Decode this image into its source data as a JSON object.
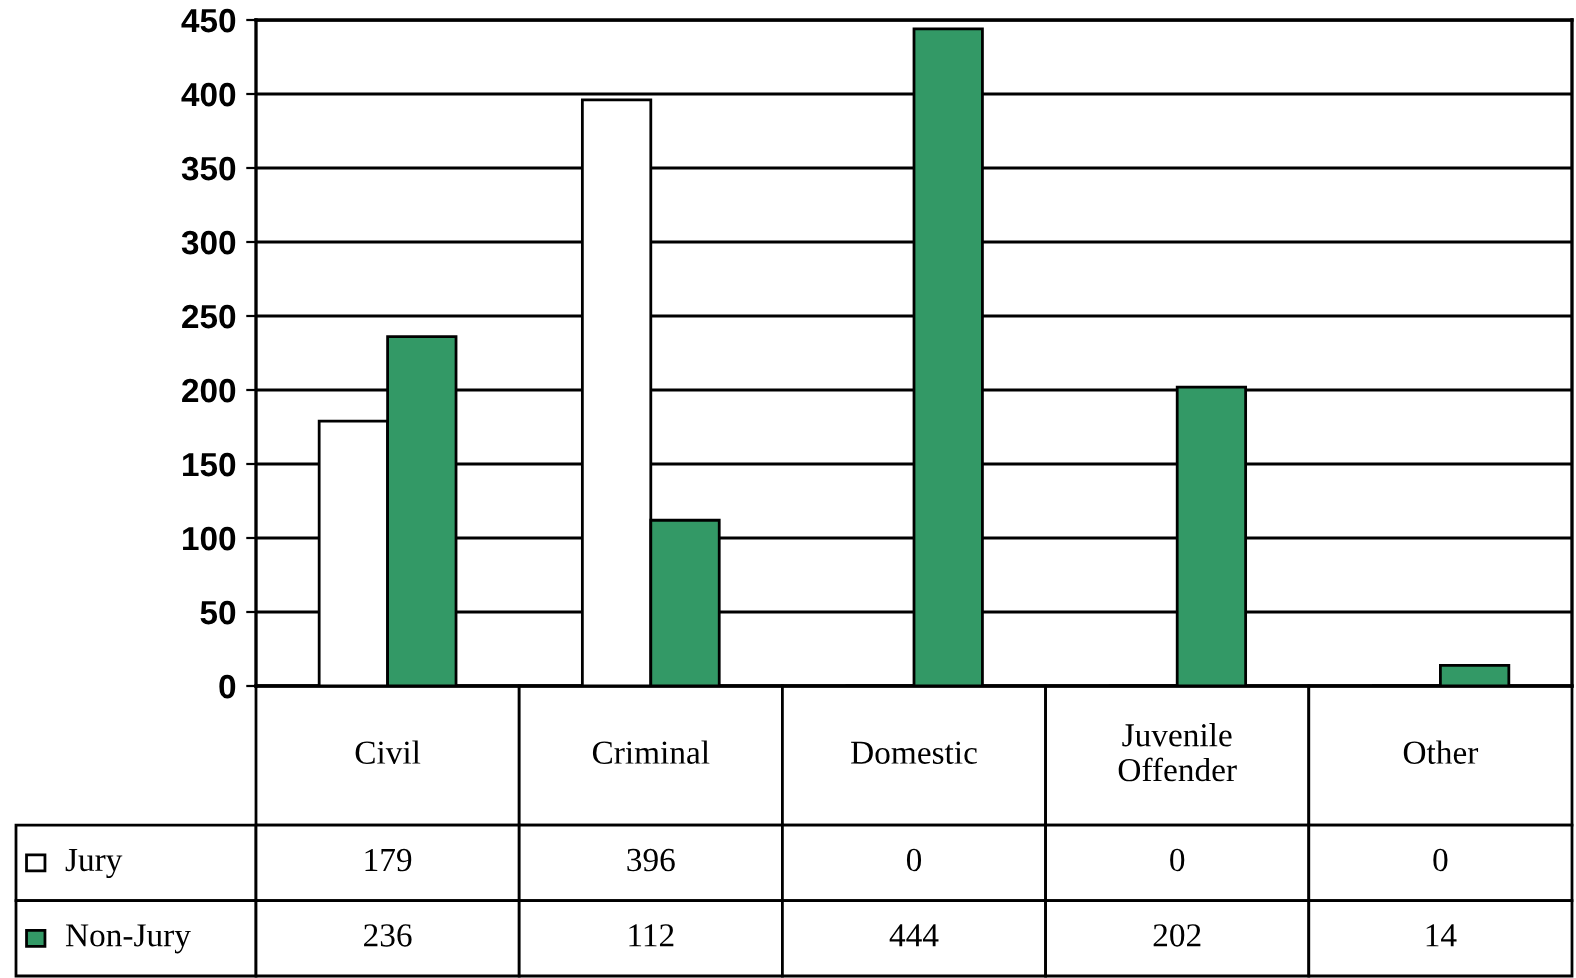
{
  "chart_data": {
    "type": "bar",
    "categories": [
      "Civil",
      "Criminal",
      "Domestic",
      "Juvenile\nOffender",
      "Other"
    ],
    "series": [
      {
        "name": "Jury",
        "color": "#ffffff",
        "values": [
          179,
          396,
          0,
          0,
          0
        ]
      },
      {
        "name": "Non-Jury",
        "color": "#339966",
        "values": [
          236,
          112,
          444,
          202,
          14
        ]
      }
    ],
    "ylim": [
      0,
      450
    ],
    "yticks": [
      0,
      50,
      100,
      150,
      200,
      250,
      300,
      350,
      400,
      450
    ],
    "grid": "y",
    "legend": "bottom left",
    "data_labels": true
  }
}
